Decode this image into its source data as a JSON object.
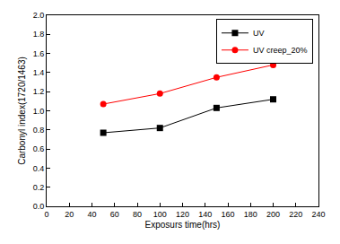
{
  "chart_data": {
    "type": "line",
    "x_label": "Exposurs time(hrs)",
    "y_label": "Carbonyl index(1720/1463)",
    "series": [
      {
        "name": "UV",
        "color": "#000000",
        "marker": "square",
        "line_style": "solid",
        "x": [
          50,
          100,
          150,
          200
        ],
        "values": [
          0.77,
          0.82,
          1.03,
          1.12
        ]
      },
      {
        "name": "UV creep_20%",
        "color": "#ff0000",
        "marker": "circle",
        "line_style": "solid",
        "x": [
          50,
          100,
          150,
          200
        ],
        "values": [
          1.07,
          1.18,
          1.35,
          1.48
        ]
      }
    ],
    "xlim": [
      0,
      240
    ],
    "xticks": [
      0,
      20,
      40,
      60,
      80,
      100,
      120,
      140,
      160,
      180,
      200,
      220,
      240
    ],
    "ylim": [
      0,
      2.0
    ],
    "yticks": [
      {
        "value": 0,
        "label": "0.0"
      },
      0.2,
      0.4,
      0.6,
      0.8,
      {
        "value": 1,
        "label": "1.0"
      },
      1.2,
      1.4,
      1.6,
      1.8,
      {
        "value": 2,
        "label": "2.0"
      }
    ],
    "grid": false,
    "legend": "upper right"
  }
}
